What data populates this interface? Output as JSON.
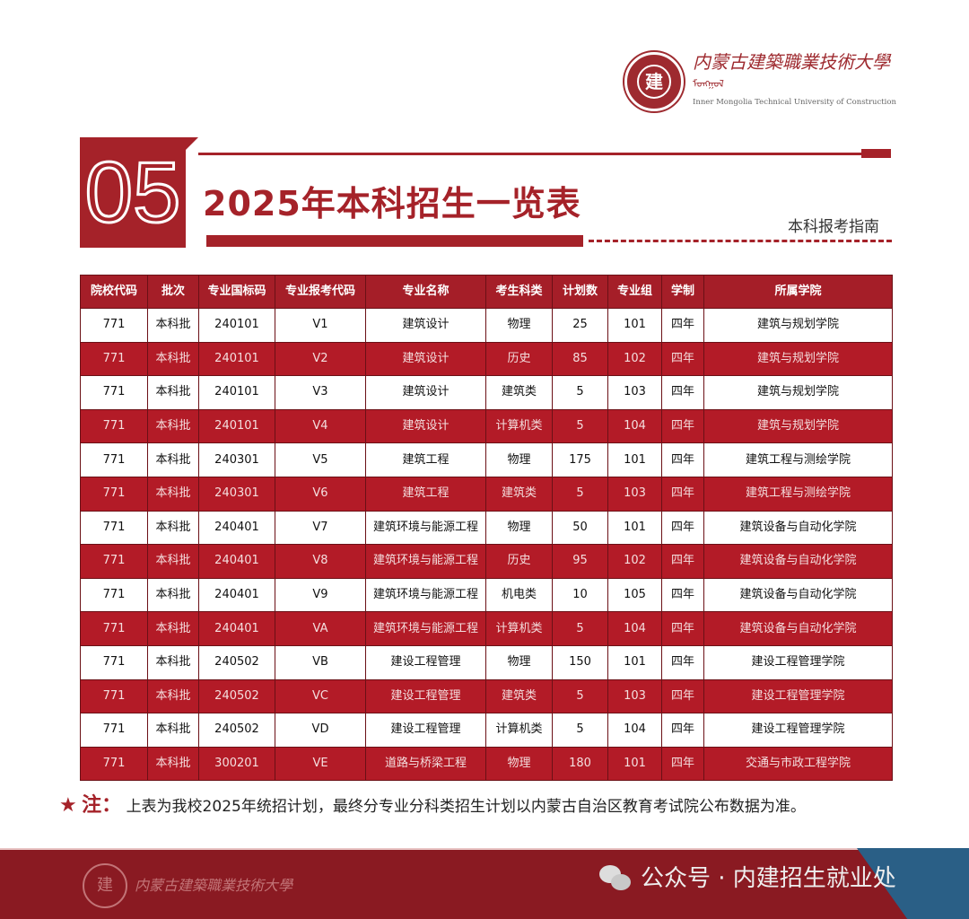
{
  "logo": {
    "cn_name": "内蒙古建築職業技術大學",
    "mongolian": "ᠮᠣᠩᠭᠣᠯ",
    "en_name": "Inner Mongolia Technical University of Construction",
    "seal_glyph": "建"
  },
  "section": {
    "number": "05",
    "title": "2025年本科招生一览表",
    "subtitle": "本科报考指南"
  },
  "colors": {
    "brand_red": "#a52229",
    "footer_red": "#8a1a22",
    "accent_blue": "#2a5f86"
  },
  "table": {
    "headers": [
      "院校代码",
      "批次",
      "专业国标码",
      "专业报考代码",
      "专业名称",
      "考生科类",
      "计划数",
      "专业组",
      "学制",
      "所属学院"
    ],
    "rows": [
      [
        "771",
        "本科批",
        "240101",
        "V1",
        "建筑设计",
        "物理",
        "25",
        "101",
        "四年",
        "建筑与规划学院"
      ],
      [
        "771",
        "本科批",
        "240101",
        "V2",
        "建筑设计",
        "历史",
        "85",
        "102",
        "四年",
        "建筑与规划学院"
      ],
      [
        "771",
        "本科批",
        "240101",
        "V3",
        "建筑设计",
        "建筑类",
        "5",
        "103",
        "四年",
        "建筑与规划学院"
      ],
      [
        "771",
        "本科批",
        "240101",
        "V4",
        "建筑设计",
        "计算机类",
        "5",
        "104",
        "四年",
        "建筑与规划学院"
      ],
      [
        "771",
        "本科批",
        "240301",
        "V5",
        "建筑工程",
        "物理",
        "175",
        "101",
        "四年",
        "建筑工程与测绘学院"
      ],
      [
        "771",
        "本科批",
        "240301",
        "V6",
        "建筑工程",
        "建筑类",
        "5",
        "103",
        "四年",
        "建筑工程与测绘学院"
      ],
      [
        "771",
        "本科批",
        "240401",
        "V7",
        "建筑环境与能源工程",
        "物理",
        "50",
        "101",
        "四年",
        "建筑设备与自动化学院"
      ],
      [
        "771",
        "本科批",
        "240401",
        "V8",
        "建筑环境与能源工程",
        "历史",
        "95",
        "102",
        "四年",
        "建筑设备与自动化学院"
      ],
      [
        "771",
        "本科批",
        "240401",
        "V9",
        "建筑环境与能源工程",
        "机电类",
        "10",
        "105",
        "四年",
        "建筑设备与自动化学院"
      ],
      [
        "771",
        "本科批",
        "240401",
        "VA",
        "建筑环境与能源工程",
        "计算机类",
        "5",
        "104",
        "四年",
        "建筑设备与自动化学院"
      ],
      [
        "771",
        "本科批",
        "240502",
        "VB",
        "建设工程管理",
        "物理",
        "150",
        "101",
        "四年",
        "建设工程管理学院"
      ],
      [
        "771",
        "本科批",
        "240502",
        "VC",
        "建设工程管理",
        "建筑类",
        "5",
        "103",
        "四年",
        "建设工程管理学院"
      ],
      [
        "771",
        "本科批",
        "240502",
        "VD",
        "建设工程管理",
        "计算机类",
        "5",
        "104",
        "四年",
        "建设工程管理学院"
      ],
      [
        "771",
        "本科批",
        "300201",
        "VE",
        "道路与桥梁工程",
        "物理",
        "180",
        "101",
        "四年",
        "交通与市政工程学院"
      ]
    ]
  },
  "note": {
    "star": "★",
    "label": "注：",
    "text": "上表为我校2025年统招计划，最终分专业分科类招生计划以内蒙古自治区教育考试院公布数据为准。"
  },
  "footer": {
    "wechat": "公众号 · 内建招生就业处",
    "logo_name": "内蒙古建築職業技術大學"
  }
}
